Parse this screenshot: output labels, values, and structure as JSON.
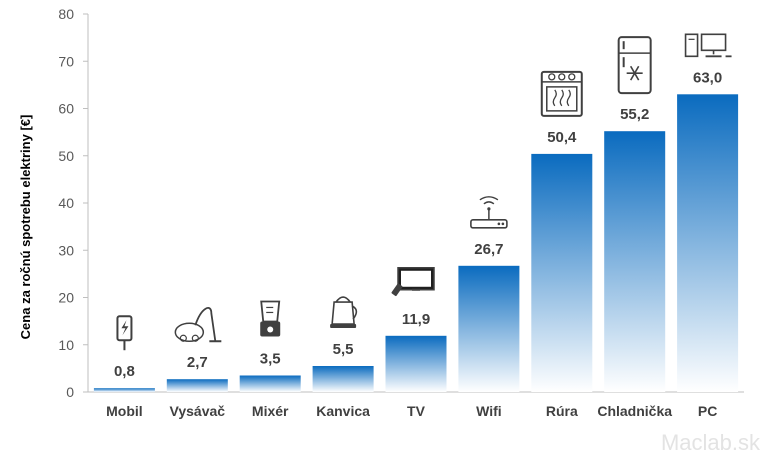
{
  "chart_data": {
    "type": "bar",
    "categories": [
      "Mobil",
      "Vysávač",
      "Mixér",
      "Kanvica",
      "TV",
      "Wifi",
      "Rúra",
      "Chladnička",
      "PC"
    ],
    "values": [
      0.8,
      2.7,
      3.5,
      5.5,
      11.9,
      26.7,
      50.4,
      55.2,
      63.0
    ],
    "value_labels": [
      "0,8",
      "2,7",
      "3,5",
      "5,5",
      "11,9",
      "26,7",
      "50,4",
      "55,2",
      "63,0"
    ],
    "icons": [
      "phone-charging-icon",
      "vacuum-cleaner-icon",
      "blender-icon",
      "kettle-icon",
      "tv-icon",
      "wifi-router-icon",
      "oven-icon",
      "fridge-icon",
      "pc-icon"
    ],
    "ylabel": "Cena za ročnú spotrebu elektriny [€]",
    "xlabel": "",
    "ylim": [
      0,
      80
    ],
    "yticks": [
      "0",
      "10",
      "20",
      "30",
      "40",
      "50",
      "60",
      "70",
      "80"
    ],
    "grid": false,
    "legend": "none",
    "bar_color_top": "#0a6bbf",
    "bar_color_bottom": "#ffffff"
  },
  "watermark": "Maclab.sk"
}
